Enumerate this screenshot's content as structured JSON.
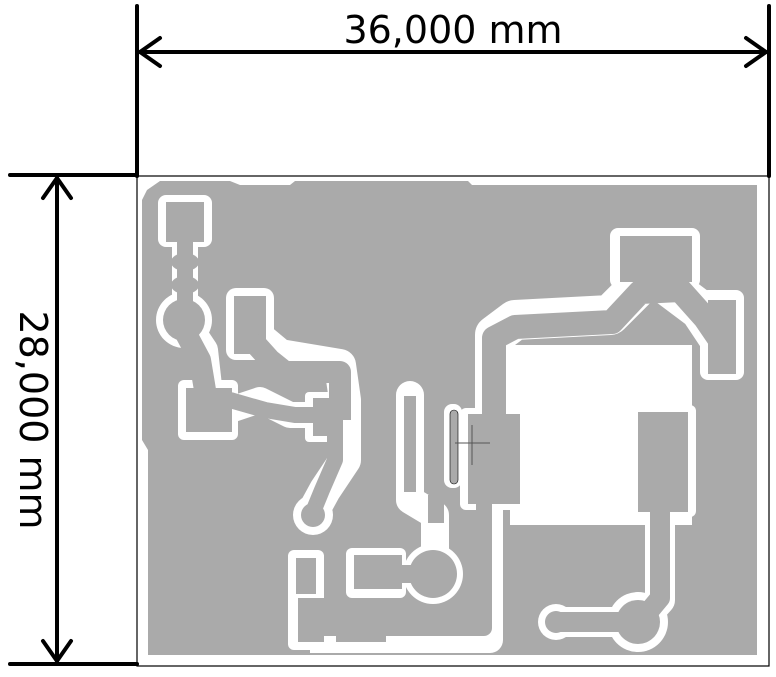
{
  "dimensions": {
    "width_label": "36,000 mm",
    "height_label": "28,000 mm"
  },
  "colors": {
    "copper": "#aaaaaa",
    "clearance": "#ffffff",
    "dimension_line": "#000000",
    "board_outline": "#000000"
  }
}
